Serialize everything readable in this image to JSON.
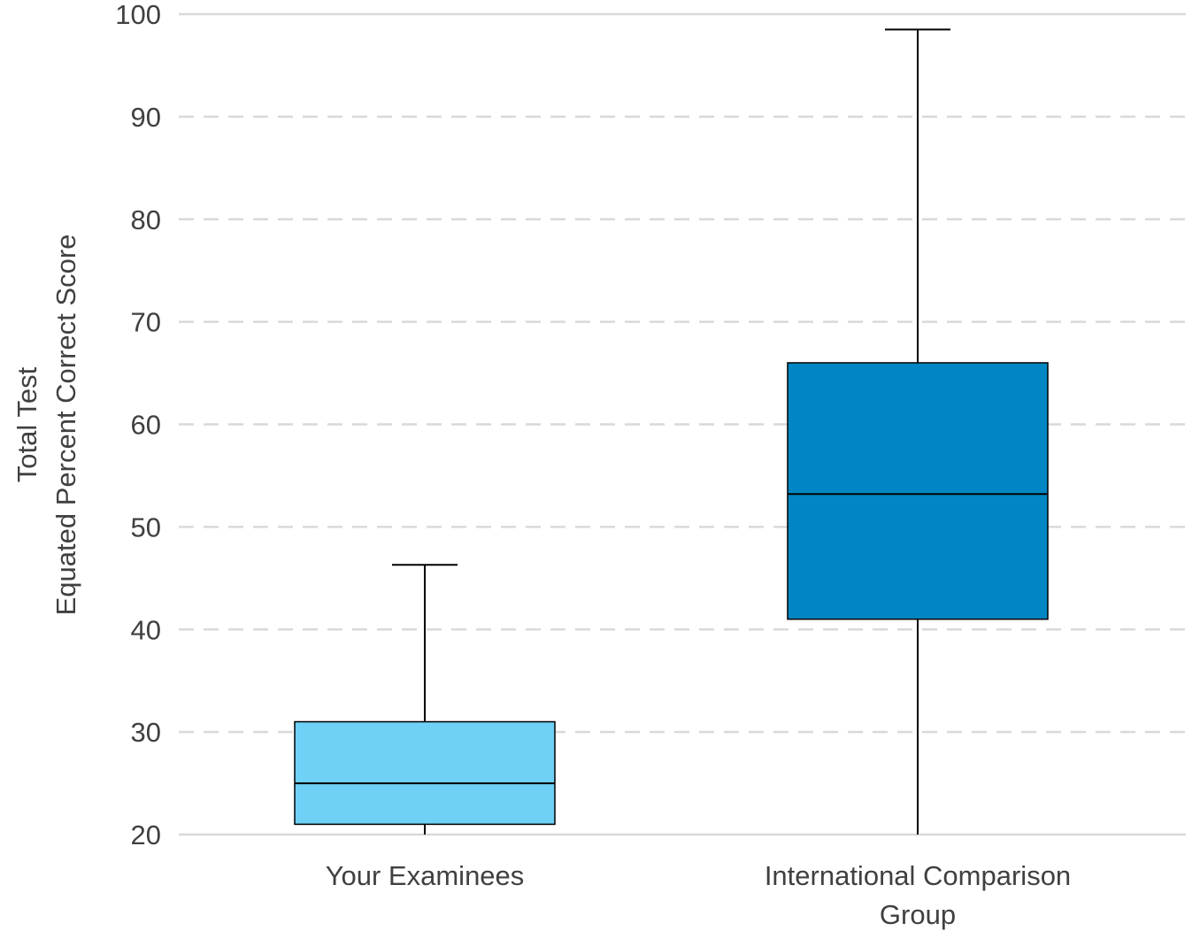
{
  "chart_data": {
    "type": "box",
    "ylabel_lines": [
      "Total Test",
      "Equated Percent Correct Score"
    ],
    "xlabel": "",
    "ylim": [
      20,
      100
    ],
    "yticks": [
      20,
      30,
      40,
      50,
      60,
      70,
      80,
      90,
      100
    ],
    "grid": true,
    "grid_style": "dashed",
    "legend": "none",
    "categories": [
      [
        "Your Examinees"
      ],
      [
        "International Comparison",
        "Group"
      ]
    ],
    "boxes": [
      {
        "whisker_low": 20,
        "q1": 21,
        "median": 25,
        "q3": 31,
        "whisker_high": 46.3,
        "color": "#6ED1F5"
      },
      {
        "whisker_low": 20,
        "q1": 41,
        "median": 53.2,
        "q3": 66,
        "whisker_high": 98.5,
        "color": "#0087C3"
      }
    ],
    "colors": {
      "grid": "#D9D9D9",
      "outline": "#000000",
      "text": "#404040"
    }
  }
}
